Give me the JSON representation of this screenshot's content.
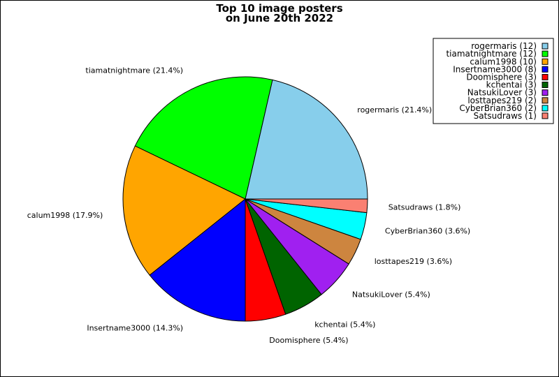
{
  "chart_data": {
    "type": "pie",
    "title_lines": [
      "Top 10 image posters",
      "on June 20th 2022"
    ],
    "slices": [
      {
        "name": "rogermaris",
        "value": 12,
        "label": "rogermaris (21.4%)",
        "legend": "rogermaris (12)",
        "color": "#87CEEB"
      },
      {
        "name": "tiamatnightmare",
        "value": 12,
        "label": "tiamatnightmare (21.4%)",
        "legend": "tiamatnightmare (12)",
        "color": "#00FF00"
      },
      {
        "name": "calum1998",
        "value": 10,
        "label": "calum1998 (17.9%)",
        "legend": "calum1998 (10)",
        "color": "#FFA500"
      },
      {
        "name": "Insertname3000",
        "value": 8,
        "label": "Insertname3000 (14.3%)",
        "legend": "Insertname3000 (8)",
        "color": "#0000FF"
      },
      {
        "name": "Doomisphere",
        "value": 3,
        "label": "Doomisphere (5.4%)",
        "legend": "Doomisphere (3)",
        "color": "#FF0000"
      },
      {
        "name": "kchentai",
        "value": 3,
        "label": "kchentai (5.4%)",
        "legend": "kchentai (3)",
        "color": "#006400"
      },
      {
        "name": "NatsukiLover",
        "value": 3,
        "label": "NatsukiLover (5.4%)",
        "legend": "NatsukiLover (3)",
        "color": "#A020F0"
      },
      {
        "name": "losttapes219",
        "value": 2,
        "label": "losttapes219 (3.6%)",
        "legend": "losttapes219 (2)",
        "color": "#CD853F"
      },
      {
        "name": "CyberBrian360",
        "value": 2,
        "label": "CyberBrian360 (3.6%)",
        "legend": "CyberBrian360 (2)",
        "color": "#00FFFF"
      },
      {
        "name": "Satsudraws",
        "value": 1,
        "label": "Satsudraws (1.8%)",
        "legend": "Satsudraws (1)",
        "color": "#FA8072"
      }
    ],
    "legend_position": "top-right"
  }
}
